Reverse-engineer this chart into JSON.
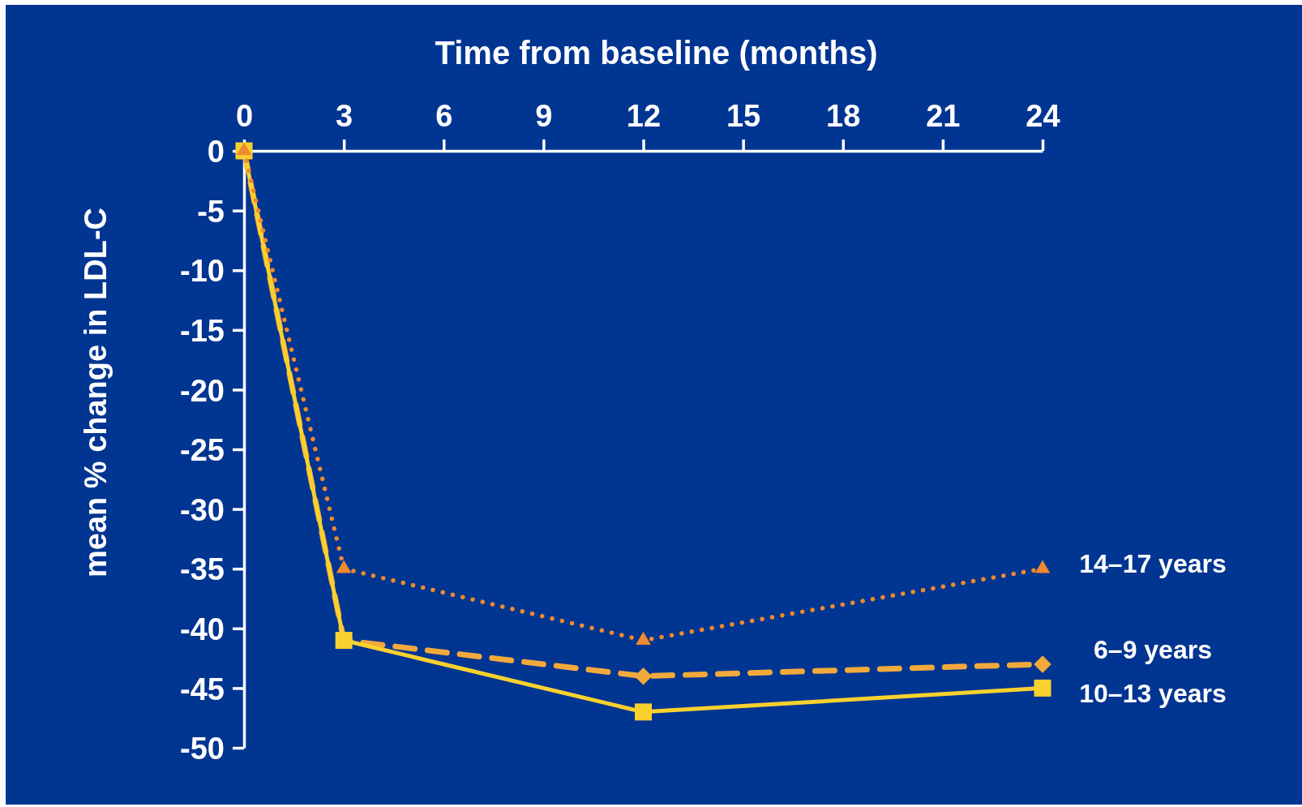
{
  "chart_data": {
    "type": "line",
    "xlabel": "Time from baseline (months)",
    "ylabel": "mean % change in LDL-C",
    "x": [
      0,
      3,
      12,
      24
    ],
    "xlim": [
      0,
      24
    ],
    "xticks": [
      0,
      3,
      6,
      9,
      12,
      15,
      18,
      21,
      24
    ],
    "ylim": [
      -50,
      0
    ],
    "yticks": [
      -50,
      -45,
      -40,
      -35,
      -30,
      -25,
      -20,
      -15,
      -10,
      -5,
      0
    ],
    "series": [
      {
        "name": "6–9 years",
        "color": "#f2a93b",
        "marker": "diamond",
        "line_style": "dashed",
        "values": [
          0,
          -41,
          -44,
          -43
        ]
      },
      {
        "name": "10–13 years",
        "color": "#f9d12e",
        "marker": "square",
        "line_style": "solid",
        "values": [
          0,
          -41,
          -47,
          -45
        ]
      },
      {
        "name": "14–17 years",
        "color": "#ee8a2e",
        "marker": "triangle",
        "line_style": "dotted",
        "values": [
          0,
          -35,
          -41,
          -35
        ]
      }
    ]
  }
}
